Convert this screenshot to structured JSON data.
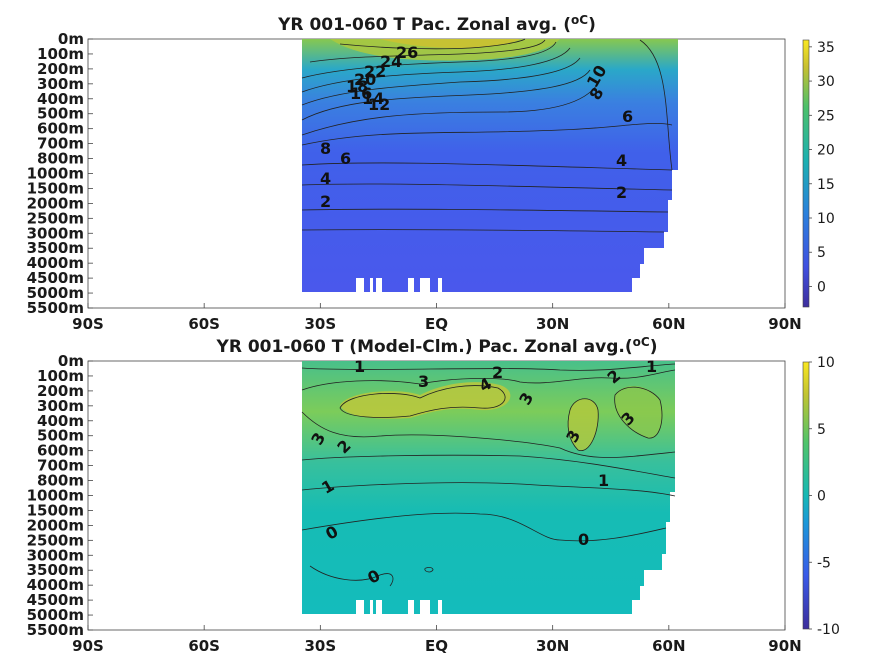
{
  "chart_data": [
    {
      "type": "heatmap",
      "title": "YR 001-060 T Pac. Zonal avg. (",
      "title_unit": "oC",
      "title_close": ")",
      "x_ticks": [
        "90S",
        "60S",
        "30S",
        "EQ",
        "30N",
        "60N",
        "90N"
      ],
      "x_values": [
        -90,
        -60,
        -30,
        0,
        30,
        60,
        90
      ],
      "y_ticks": [
        "0m",
        "100m",
        "200m",
        "300m",
        "400m",
        "500m",
        "600m",
        "700m",
        "800m",
        "1000m",
        "1500m",
        "2000m",
        "2500m",
        "3000m",
        "3500m",
        "4000m",
        "4500m",
        "5000m",
        "5500m"
      ],
      "data_extent_lat": [
        -35,
        62
      ],
      "colorbar": {
        "ticks": [
          35,
          30,
          25,
          20,
          15,
          10,
          5,
          0
        ],
        "range": [
          -3,
          36
        ]
      },
      "contour_labels": [
        "26",
        "24",
        "22",
        "20",
        "18",
        "16",
        "14",
        "12",
        "10",
        "8",
        "6",
        "8",
        "6",
        "4",
        "4",
        "2",
        "2"
      ],
      "colors": {
        "high": "#f9e721",
        "mid": "#21b49b",
        "low": "#4848e8",
        "min": "#3d2e9c"
      }
    },
    {
      "type": "heatmap",
      "title": "YR 001-060 T (Model-Clm.) Pac. Zonal avg.(",
      "title_unit": "oC",
      "title_close": ")",
      "x_ticks": [
        "90S",
        "60S",
        "30S",
        "EQ",
        "30N",
        "60N",
        "90N"
      ],
      "x_values": [
        -90,
        -60,
        -30,
        0,
        30,
        60,
        90
      ],
      "y_ticks": [
        "0m",
        "100m",
        "200m",
        "300m",
        "400m",
        "500m",
        "600m",
        "700m",
        "800m",
        "1000m",
        "1500m",
        "2000m",
        "2500m",
        "3000m",
        "3500m",
        "4000m",
        "4500m",
        "5000m",
        "5500m"
      ],
      "data_extent_lat": [
        -35,
        62
      ],
      "colorbar": {
        "ticks": [
          10,
          5,
          0,
          -5,
          -10
        ],
        "range": [
          -10,
          10
        ]
      },
      "contour_labels": [
        "1",
        "3",
        "4",
        "2",
        "3",
        "2",
        "1",
        "3",
        "3",
        "3",
        "2",
        "1",
        "1",
        "0",
        "0",
        "0"
      ],
      "colors": {
        "high": "#f9e721",
        "mid": "#21b49b",
        "low": "#4848e8",
        "min": "#3d2e9c"
      }
    }
  ]
}
